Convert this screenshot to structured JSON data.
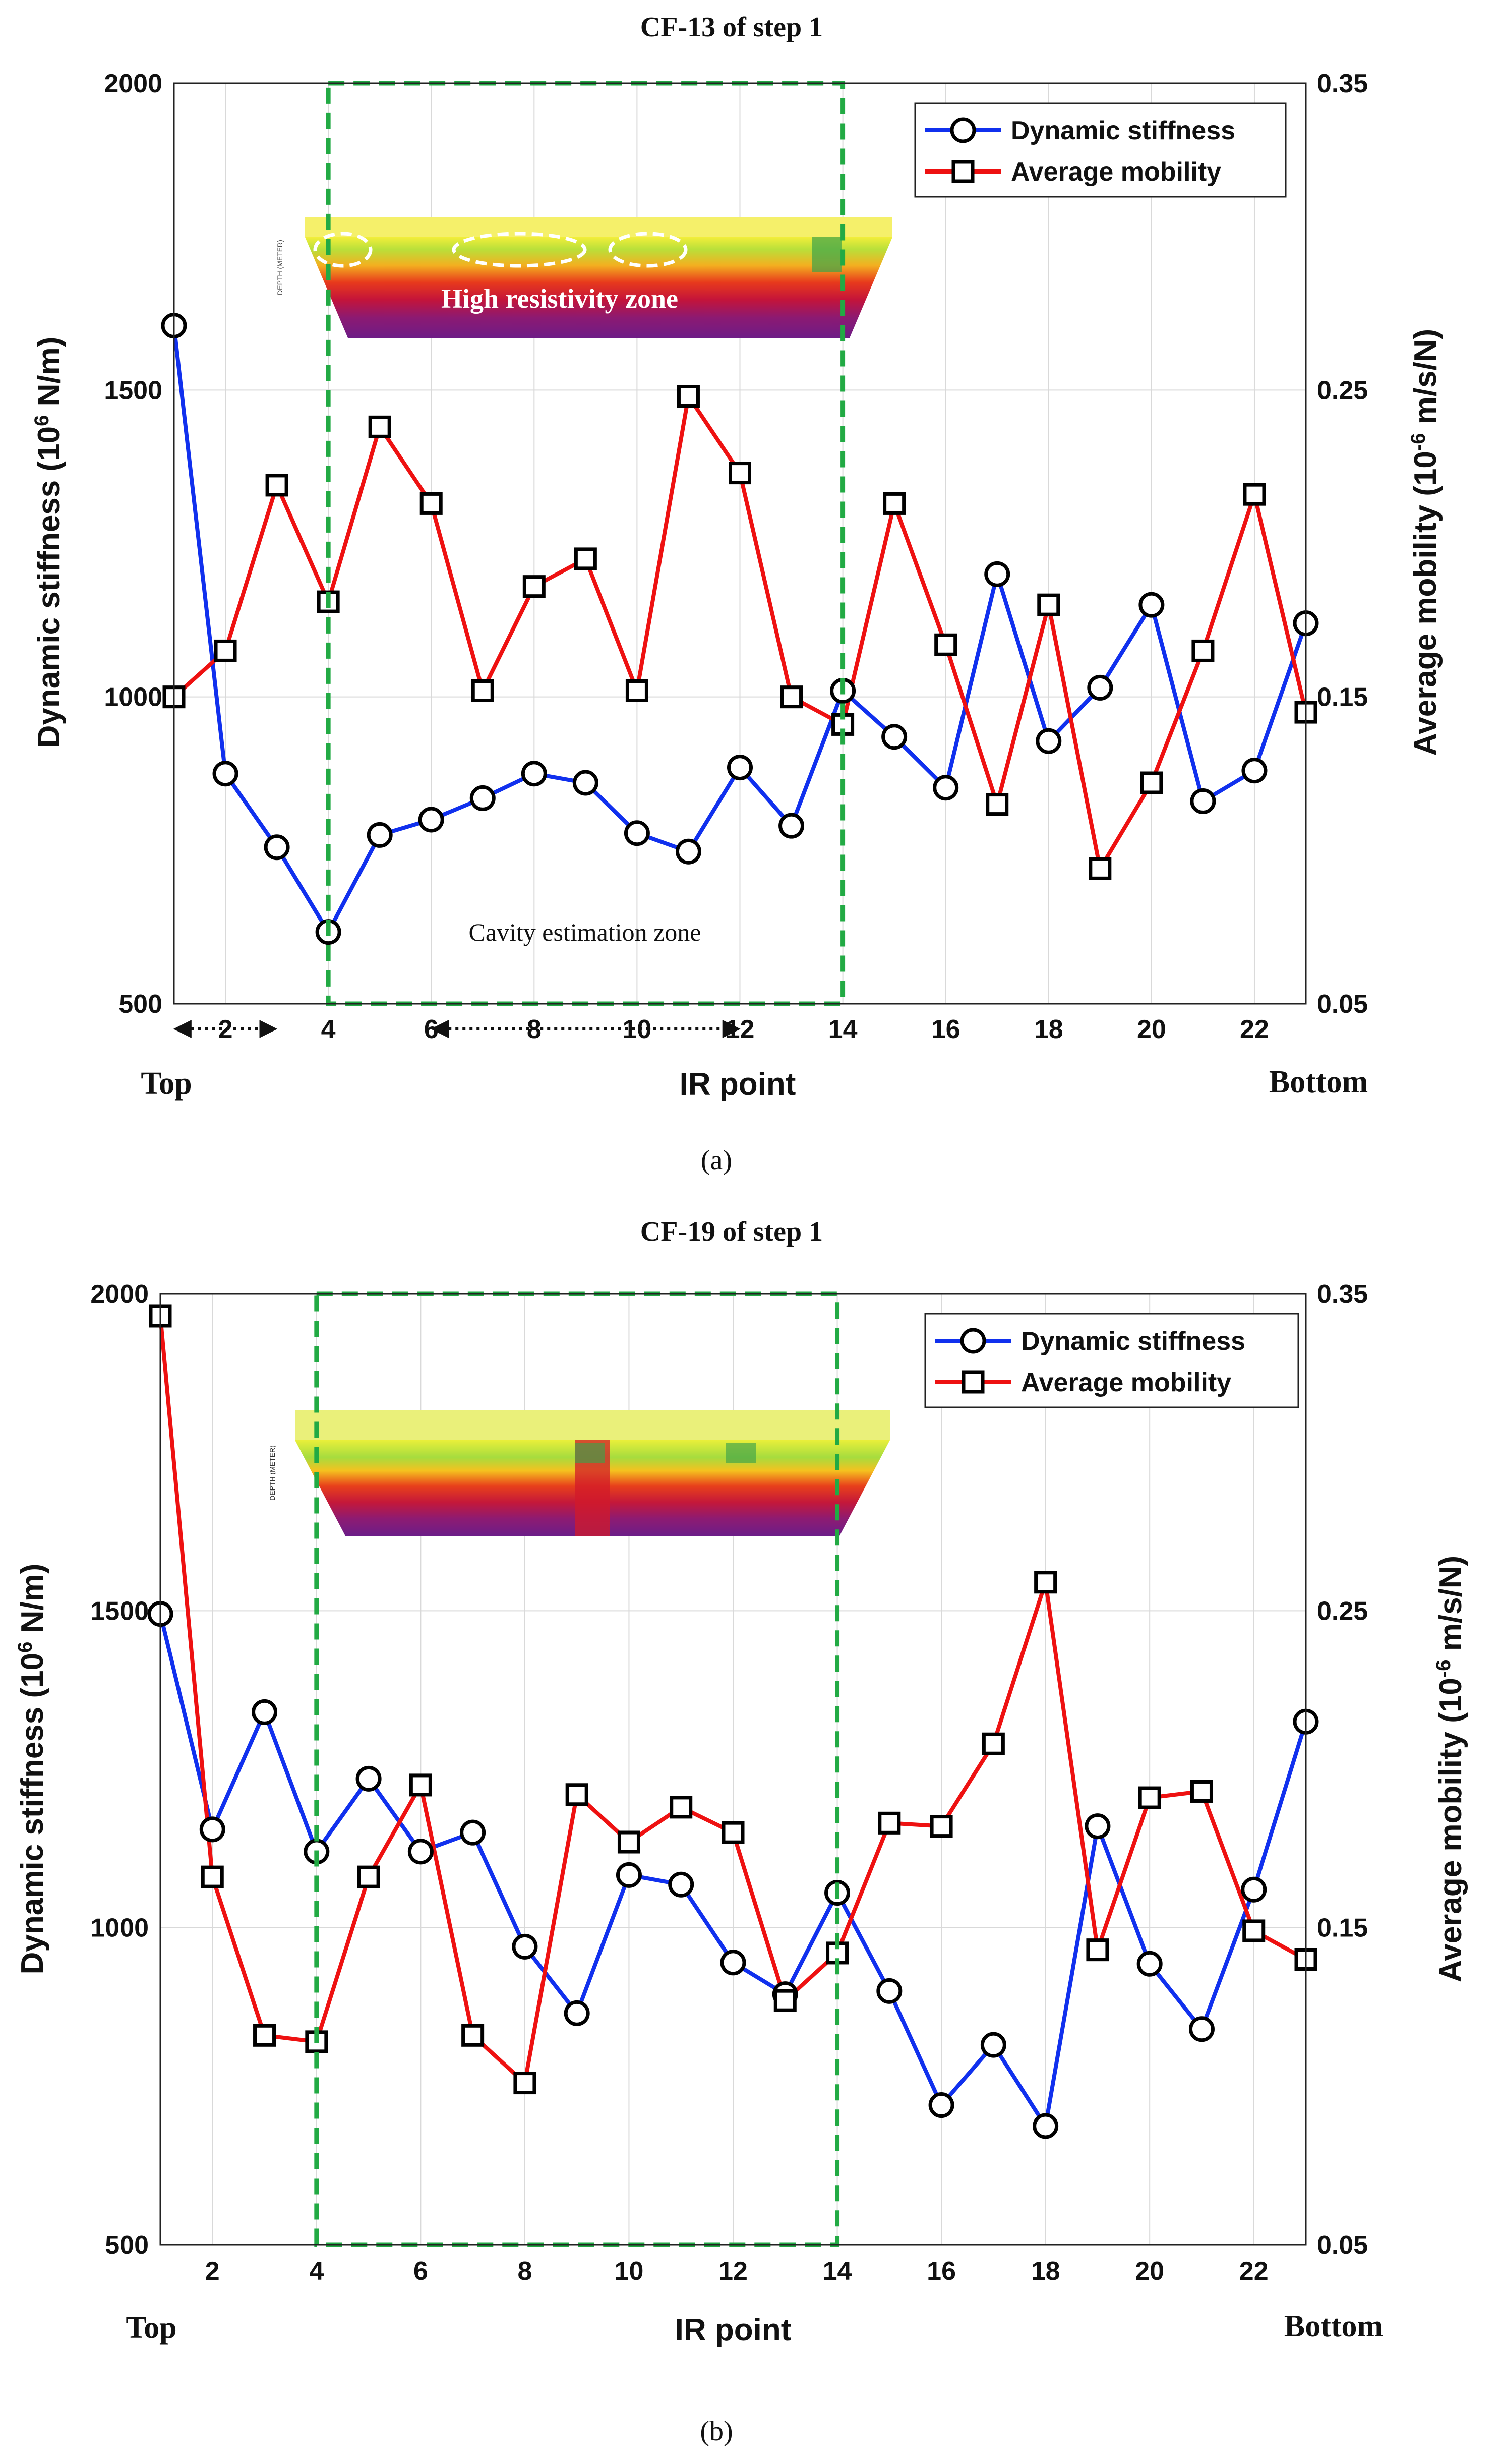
{
  "chart_data": [
    {
      "type": "line",
      "panel_label": "(a)",
      "title": "CF-13 of step 1",
      "xlabel": "IR point",
      "ylabel_left": "Dynamic stiffness (10",
      "ylabel_left_sup": "6",
      "ylabel_left_unit": " N/m)",
      "ylabel_right": "Average mobility (10",
      "ylabel_right_sup": "-6",
      "ylabel_right_unit": " m/s/N)",
      "x_left_label": "Top",
      "x_right_label": "Bottom",
      "xlim": [
        1,
        23
      ],
      "ylim_left": [
        500,
        2000
      ],
      "ylim_right": [
        0.05,
        0.35
      ],
      "xticks": [
        2,
        4,
        6,
        8,
        10,
        12,
        14,
        16,
        18,
        20,
        22
      ],
      "yticks_left": [
        500,
        1000,
        1500,
        2000
      ],
      "yticks_right": [
        "0.05",
        "0.15",
        "0.25",
        "0.35"
      ],
      "grid": true,
      "legend_position": "top-right",
      "x": [
        1,
        2,
        3,
        4,
        5,
        6,
        7,
        8,
        9,
        10,
        11,
        12,
        13,
        14,
        15,
        16,
        17,
        18,
        19,
        20,
        21,
        22,
        23
      ],
      "series": [
        {
          "name": "Dynamic stiffness",
          "axis": "left",
          "color": "#1030ee",
          "marker": "circle",
          "values": [
            1605,
            875,
            755,
            617,
            775,
            800,
            835,
            875,
            860,
            778,
            748,
            885,
            790,
            1010,
            935,
            852,
            1200,
            928,
            1015,
            1150,
            830,
            880,
            1120
          ]
        },
        {
          "name": "Average mobility",
          "axis": "right",
          "color": "#ee1111",
          "marker": "square",
          "values": [
            0.15,
            0.165,
            0.219,
            0.181,
            0.238,
            0.213,
            0.152,
            0.186,
            0.195,
            0.152,
            0.248,
            0.223,
            0.15,
            0.141,
            0.213,
            0.167,
            0.115,
            0.18,
            0.094,
            0.122,
            0.165,
            0.216,
            0.145
          ]
        }
      ],
      "highlight_box": {
        "x_range": [
          4,
          14
        ],
        "color": "#22aa44",
        "label": "Cavity estimation zone"
      },
      "inset": {
        "annotation": "High resistivity zone",
        "axis_label": "DEPTH (METER)"
      },
      "arrow_ranges": [
        [
          1,
          3
        ],
        [
          6,
          12
        ]
      ]
    },
    {
      "type": "line",
      "panel_label": "(b)",
      "title": "CF-19 of step 1",
      "xlabel": "IR point",
      "ylabel_left": "Dynamic stiffness (10",
      "ylabel_left_sup": "6",
      "ylabel_left_unit": " N/m)",
      "ylabel_right": "Average mobility (10",
      "ylabel_right_sup": "-6",
      "ylabel_right_unit": " m/s/N)",
      "x_left_label": "Top",
      "x_right_label": "Bottom",
      "xlim": [
        1,
        23
      ],
      "ylim_left": [
        500,
        2000
      ],
      "ylim_right": [
        0.05,
        0.35
      ],
      "xticks": [
        2,
        4,
        6,
        8,
        10,
        12,
        14,
        16,
        18,
        20,
        22
      ],
      "yticks_left": [
        500,
        1000,
        1500,
        2000
      ],
      "yticks_right": [
        "0.05",
        "0.15",
        "0.25",
        "0.35"
      ],
      "grid": true,
      "legend_position": "top-right",
      "x": [
        1,
        2,
        3,
        4,
        5,
        6,
        7,
        8,
        9,
        10,
        11,
        12,
        13,
        14,
        15,
        16,
        17,
        18,
        19,
        20,
        21,
        22,
        23
      ],
      "series": [
        {
          "name": "Dynamic stiffness",
          "axis": "left",
          "color": "#1030ee",
          "marker": "circle",
          "values": [
            1495,
            1155,
            1340,
            1120,
            1235,
            1120,
            1150,
            970,
            865,
            1083,
            1068,
            945,
            895,
            1055,
            900,
            720,
            815,
            687,
            1160,
            943,
            840,
            1060,
            1325
          ]
        },
        {
          "name": "Average mobility",
          "axis": "right",
          "color": "#ee1111",
          "marker": "square",
          "values": [
            0.343,
            0.166,
            0.116,
            0.114,
            0.166,
            0.195,
            0.116,
            0.101,
            0.192,
            0.177,
            0.188,
            0.18,
            0.127,
            0.142,
            0.183,
            0.182,
            0.208,
            0.259,
            0.143,
            0.191,
            0.193,
            0.149,
            0.14
          ]
        }
      ],
      "highlight_box": {
        "x_range": [
          4,
          14
        ],
        "color": "#22aa44"
      },
      "inset": {
        "axis_label": "DEPTH (METER)"
      }
    }
  ]
}
